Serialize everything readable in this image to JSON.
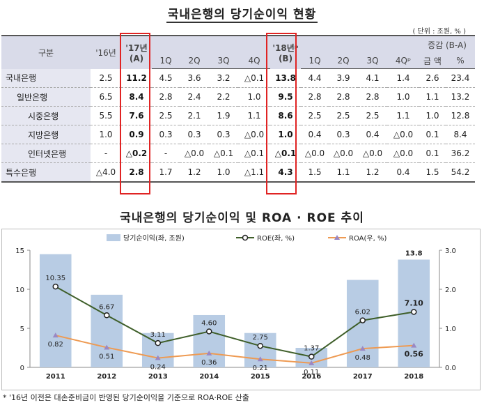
{
  "title": "국내은행의 당기순이익 현황",
  "unit": "( 단위 : 조원, % )",
  "table": {
    "header_row1": [
      "구분",
      "'16년",
      "'17년",
      "",
      "",
      "",
      "",
      "'18년ᵖ",
      "",
      "",
      "",
      "",
      "증감 (B-A)",
      ""
    ],
    "header_row1_sub": {
      "a": "(A)",
      "b": "(B)"
    },
    "header_row2": [
      "1Q",
      "2Q",
      "3Q",
      "4Q",
      "1Q",
      "2Q",
      "3Q",
      "4Qᵖ",
      "금 액",
      "%"
    ],
    "rows": [
      {
        "label": "국내은행",
        "indent": 0,
        "cells": [
          "2.5",
          "11.2",
          "4.5",
          "3.6",
          "3.2",
          "△0.1",
          "13.8",
          "4.4",
          "3.9",
          "4.1",
          "1.4",
          "2.6",
          "23.4"
        ]
      },
      {
        "label": "일반은행",
        "indent": 1,
        "cells": [
          "6.5",
          "8.4",
          "2.8",
          "2.4",
          "2.2",
          "1.0",
          "9.5",
          "2.8",
          "2.8",
          "2.8",
          "1.0",
          "1.1",
          "13.2"
        ]
      },
      {
        "label": "시중은행",
        "indent": 2,
        "cells": [
          "5.5",
          "7.6",
          "2.5",
          "2.1",
          "1.9",
          "1.1",
          "8.6",
          "2.5",
          "2.5",
          "2.5",
          "1.1",
          "1.0",
          "12.8"
        ]
      },
      {
        "label": "지방은행",
        "indent": 2,
        "cells": [
          "1.0",
          "0.9",
          "0.3",
          "0.3",
          "0.3",
          "△0.0",
          "1.0",
          "0.4",
          "0.3",
          "0.4",
          "△0.0",
          "0.1",
          "8.4"
        ]
      },
      {
        "label": "인터넷은행",
        "indent": 2,
        "cells": [
          "-",
          "△0.2",
          "-",
          "△0.0",
          "△0.1",
          "△0.1",
          "△0.1",
          "△0.0",
          "△0.0",
          "△0.0",
          "△0.0",
          "0.1",
          "36.2"
        ]
      },
      {
        "label": "특수은행",
        "indent": 0,
        "cells": [
          "△4.0",
          "2.8",
          "1.7",
          "1.2",
          "1.0",
          "△1.1",
          "4.3",
          "1.5",
          "1.1",
          "1.2",
          "0.4",
          "1.5",
          "54.2"
        ]
      }
    ]
  },
  "chart_title": "국내은행의 당기순이익 및 ROA · ROE 추이",
  "chart_data": {
    "type": "bar",
    "categories": [
      "2011",
      "2012",
      "2013",
      "2014",
      "2015",
      "2016",
      "2017",
      "2018"
    ],
    "series": [
      {
        "name": "당기순이익(좌, 조원)",
        "type": "bar",
        "axis": "left",
        "values": [
          14.5,
          9.3,
          4.4,
          6.7,
          4.4,
          2.5,
          11.2,
          13.8
        ]
      },
      {
        "name": "ROE(좌, %)",
        "type": "line",
        "axis": "left",
        "values": [
          10.35,
          6.67,
          3.11,
          4.6,
          2.75,
          1.37,
          6.02,
          7.1
        ]
      },
      {
        "name": "ROA(우, %)",
        "type": "line",
        "axis": "right",
        "values": [
          0.82,
          0.51,
          0.24,
          0.36,
          0.21,
          0.11,
          0.48,
          0.56
        ]
      }
    ],
    "bar_top_label": "13.8",
    "y_left": {
      "min": 0,
      "max": 15,
      "ticks": [
        "0",
        "5",
        "10",
        "15"
      ]
    },
    "y_right": {
      "min": 0,
      "max": 3,
      "ticks": [
        "0.0",
        "1.0",
        "2.0",
        "3.0"
      ]
    },
    "legend_position": "top",
    "colors": {
      "bar": "#b8cce4",
      "roe": "#3f5f2a",
      "roa": "#ee9a52"
    }
  },
  "footnote": "* '16년 이전은 대손준비금이 반영된 당기순이익을 기준으로 ROA·ROE 산출"
}
